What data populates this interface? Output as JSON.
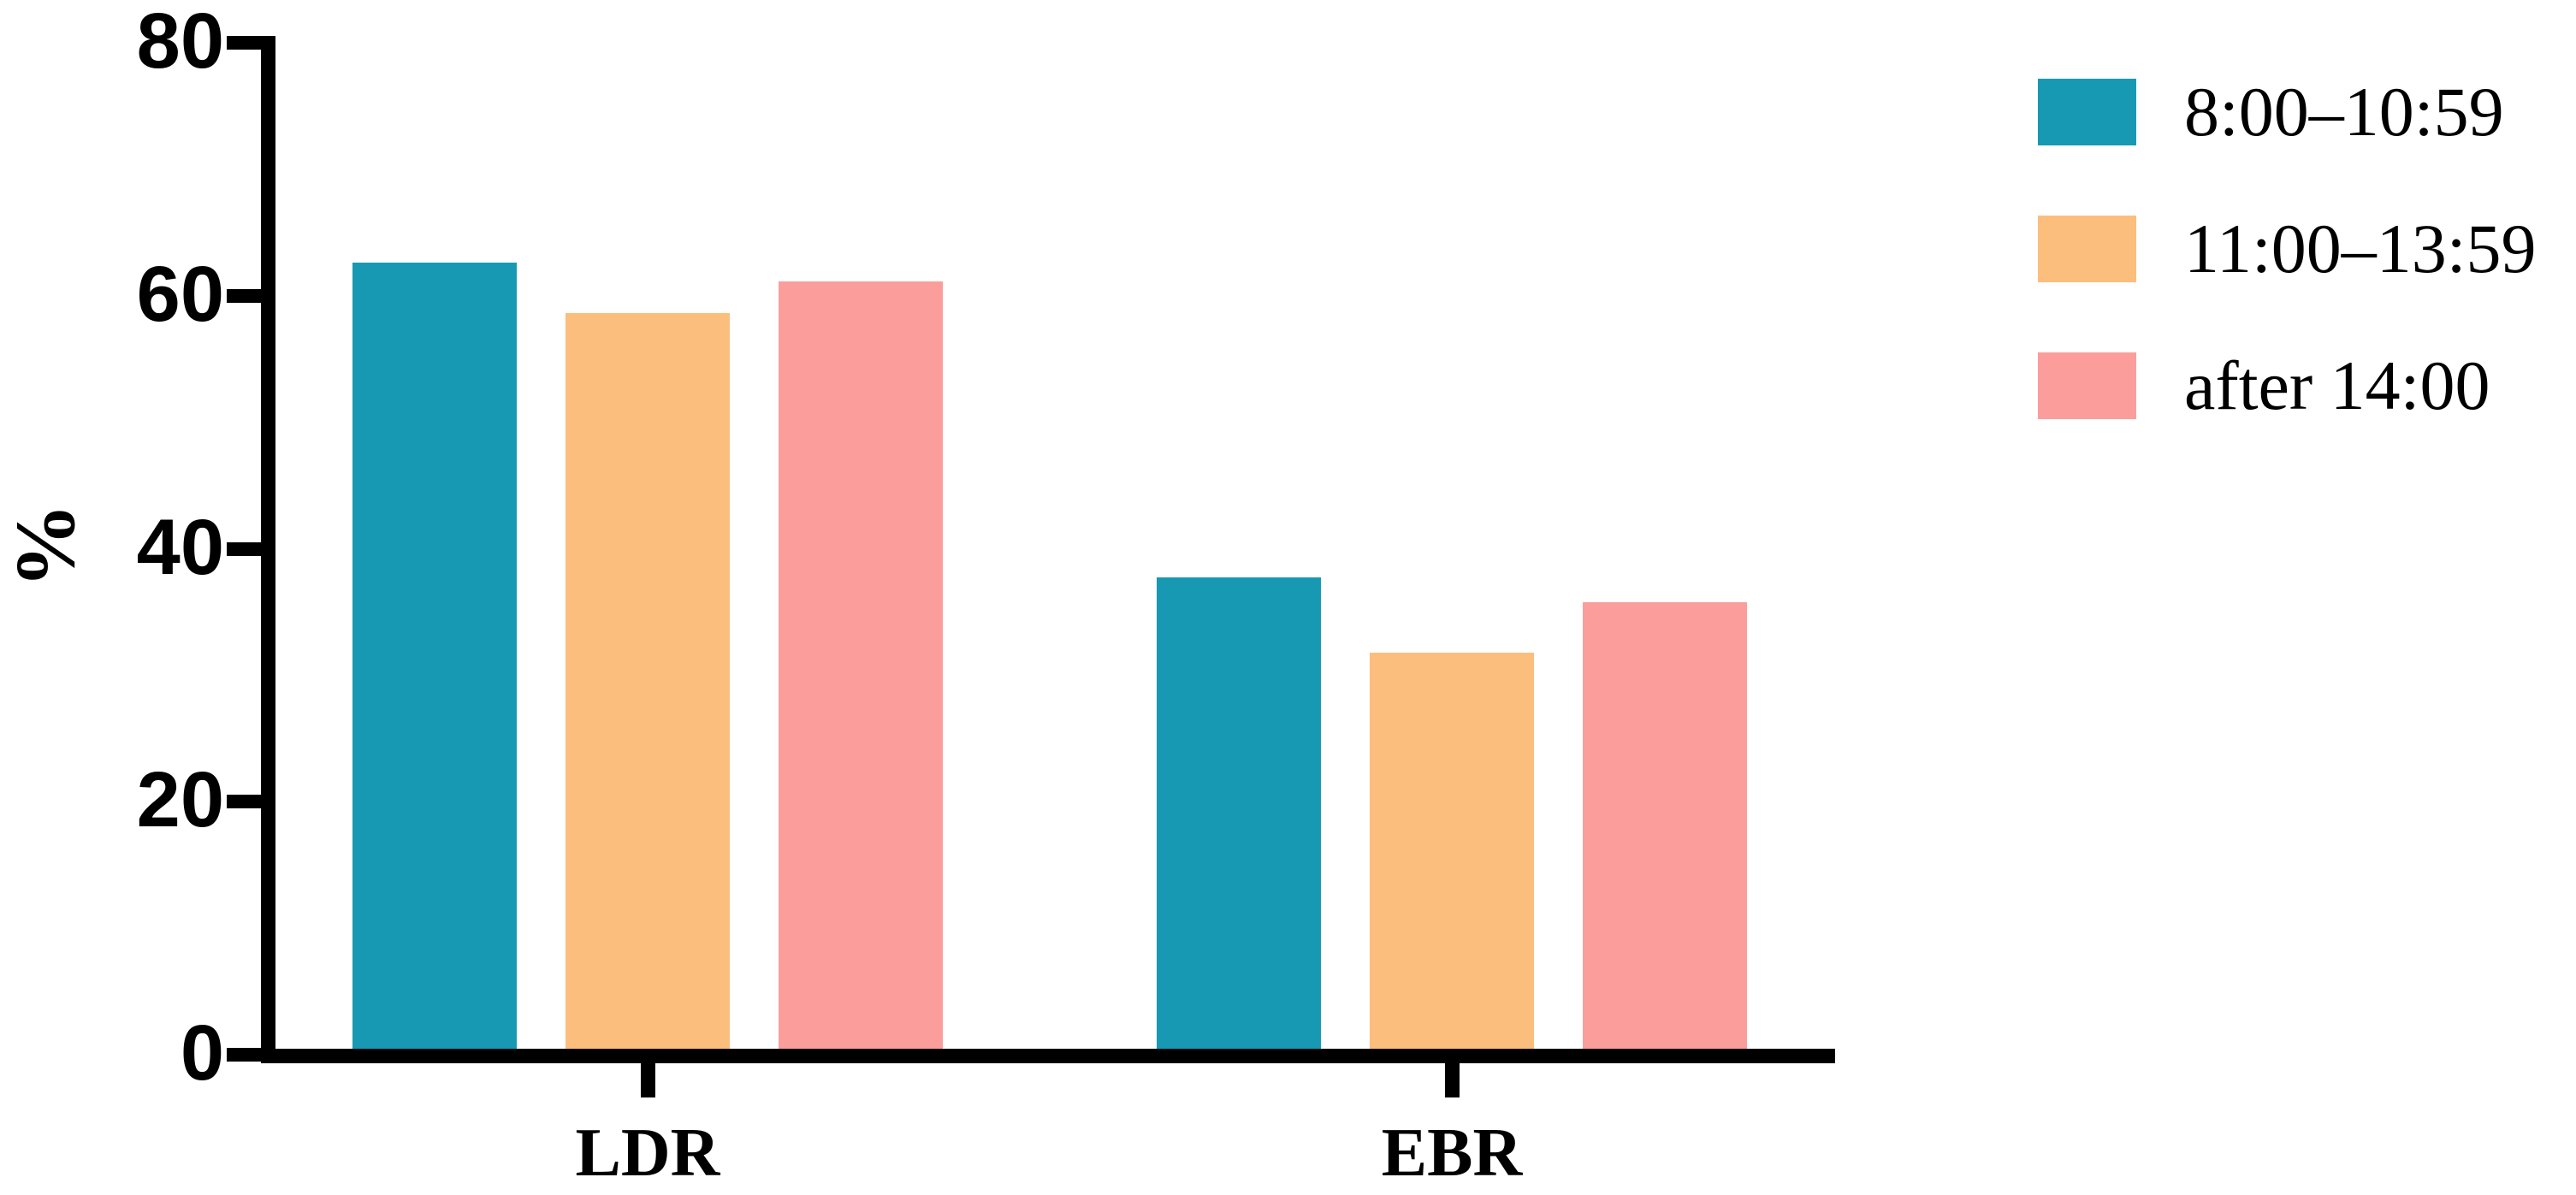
{
  "chart_data": {
    "type": "bar",
    "title": "",
    "categories": [
      "LDR",
      "EBR"
    ],
    "series": [
      {
        "name": "8:00–10:59",
        "color": "#1899b3",
        "values": [
          62.5,
          37.5
        ]
      },
      {
        "name": "11:00–13:59",
        "color": "#fcbe7c",
        "values": [
          58.5,
          31.5
        ]
      },
      {
        "name": "after 14:00",
        "color": "#fb9e9b",
        "values": [
          61,
          35.5
        ]
      }
    ],
    "xlabel": "",
    "ylabel": "%",
    "ylim": [
      0,
      80
    ],
    "yticks": [
      0,
      20,
      40,
      60,
      80
    ],
    "grid": false,
    "legend_position": "top-right",
    "axis_color": "#000000"
  }
}
